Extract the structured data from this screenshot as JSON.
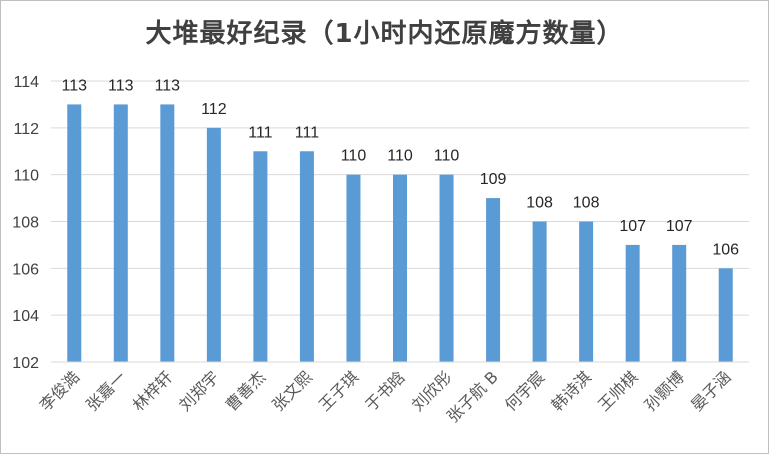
{
  "chart_data": {
    "type": "bar",
    "title": "大堆最好纪录（1小时内还原魔方数量）",
    "categories": [
      "李俊澔",
      "张嘉一",
      "林梓轩",
      "刘郑宇",
      "曹善杰",
      "张文熙",
      "王子琪",
      "于书晗",
      "刘欣彤",
      "张子航 B",
      "何宇宸",
      "韩诗淇",
      "王帅棋",
      "孙颢博",
      "晏子涵"
    ],
    "values": [
      113,
      113,
      113,
      112,
      111,
      111,
      110,
      110,
      110,
      109,
      108,
      108,
      107,
      107,
      106
    ],
    "ylim": [
      102,
      114
    ],
    "yticks": [
      102,
      104,
      106,
      108,
      110,
      112,
      114
    ],
    "grid": true,
    "legend": "none",
    "bar_color": "#5b9bd5",
    "grid_color": "#d9d9d9"
  }
}
